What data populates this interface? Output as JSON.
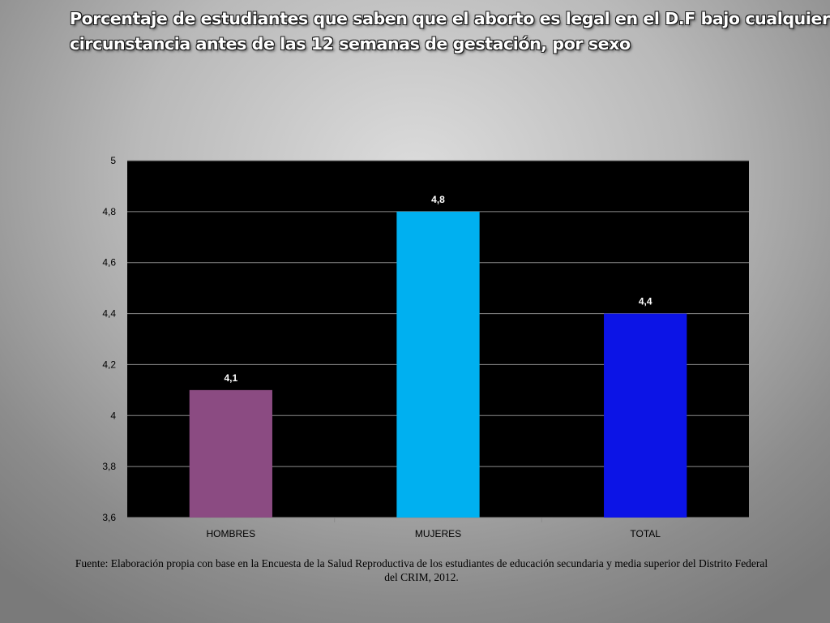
{
  "title_lines": [
    "Porcentaje de estudiantes que saben que  el aborto es legal en el D.F bajo cualquier",
    "circunstancia antes de las 12 semanas de gestación, por  sexo"
  ],
  "source_lines": [
    "Fuente: Elaboración propia con base en la Encuesta de la Salud Reproductiva de los estudiantes de educación secundaria y media superior del Distrito Federal",
    "del CRIM, 2012."
  ],
  "chart_data": {
    "type": "bar",
    "title": "Porcentaje de estudiantes que saben que  el aborto es legal en el D.F bajo cualquier circunstancia antes de las 12 semanas de gestación, por  sexo",
    "categories": [
      "HOMBRES",
      "MUJERES",
      "TOTAL"
    ],
    "values": [
      4.1,
      4.8,
      4.4
    ],
    "data_labels": [
      "4,1",
      "4,8",
      "4,4"
    ],
    "bar_colors": [
      "#8b4b82",
      "#00b0f0",
      "#0c14e6"
    ],
    "ylim": [
      3.6,
      5
    ],
    "yticks": [
      3.6,
      3.8,
      4,
      4.2,
      4.4,
      4.6,
      4.8,
      5
    ],
    "ytick_labels": [
      "3,6",
      "3,8",
      "4",
      "4,2",
      "4,4",
      "4,6",
      "4,8",
      "5"
    ],
    "xlabel": "",
    "ylabel": "",
    "grid": true,
    "legend": "none",
    "plot_background": "#000000",
    "grid_color": "#8c8c8c"
  }
}
